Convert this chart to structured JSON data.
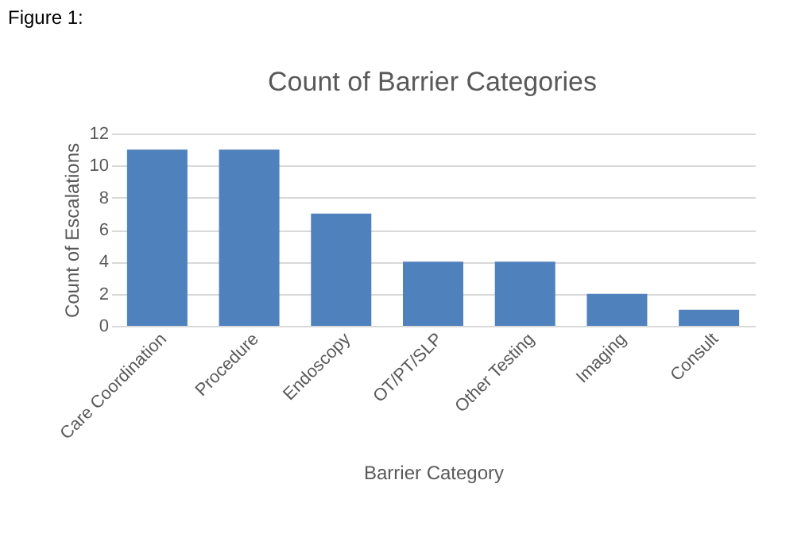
{
  "chart_data": {
    "type": "bar",
    "title": "Count of Barrier Categories",
    "xlabel": "Barrier Category",
    "ylabel": "Count of Escalations",
    "annotations": [
      "Figure 1:"
    ],
    "categories": [
      "Care Coordination",
      "Procedure",
      "Endoscopy",
      "OT/PT/SLP",
      "Other Testing",
      "Imaging",
      "Consult"
    ],
    "values": [
      11,
      11,
      7,
      4,
      4,
      2,
      1
    ],
    "color": "#4f81bd",
    "ylim": [
      0,
      12
    ],
    "yticks": [
      0,
      2,
      4,
      6,
      8,
      10,
      12
    ],
    "grid": "y",
    "legend": false
  }
}
